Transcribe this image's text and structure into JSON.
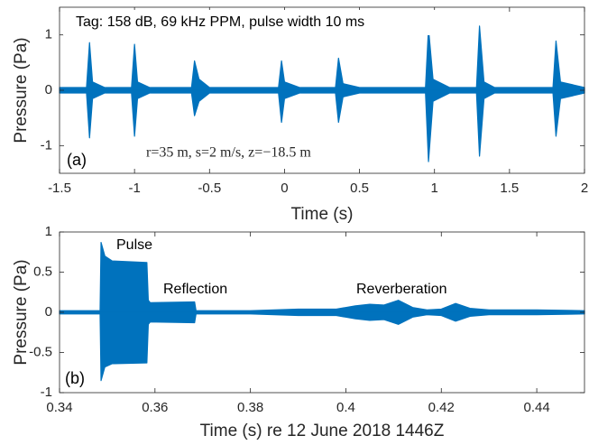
{
  "chart_data": [
    {
      "type": "line",
      "xlabel": "Time (s)",
      "ylabel": "Pressure (Pa)",
      "panel_label": "(a)",
      "annotations": [
        "Tag:  158 dB,  69 kHz PPM,  pulse width 10 ms",
        "r=35 m, s=2 m/s, z=−18.5 m"
      ],
      "xlim": [
        -1.5,
        2
      ],
      "ylim": [
        -1.5,
        1.5
      ],
      "xticks": [
        -1.5,
        -1,
        -0.5,
        0,
        0.5,
        1,
        1.5,
        2
      ],
      "yticks": [
        -1,
        0,
        1
      ],
      "x": [
        -1.5,
        -1.32,
        -1.3,
        -1.28,
        -1.2,
        -1.02,
        -1.0,
        -0.98,
        -0.9,
        -0.62,
        -0.6,
        -0.57,
        -0.5,
        -0.04,
        -0.02,
        0.0,
        0.1,
        0.34,
        0.36,
        0.39,
        0.5,
        0.94,
        0.96,
        0.99,
        1.1,
        1.28,
        1.3,
        1.33,
        1.4,
        1.79,
        1.81,
        1.84,
        2.0
      ],
      "series": [
        {
          "color": "#0072bd",
          "values": [
            0.05,
            0.05,
            0.86,
            0.15,
            0.05,
            0.05,
            0.83,
            0.15,
            0.05,
            0.05,
            0.53,
            0.2,
            0.05,
            0.05,
            0.53,
            0.15,
            0.05,
            0.05,
            0.58,
            0.12,
            0.05,
            0.05,
            1.12,
            0.2,
            0.05,
            0.05,
            1.16,
            0.15,
            0.05,
            0.05,
            0.89,
            0.15,
            0.05
          ]
        },
        {
          "color": "#0072bd",
          "values": [
            -0.05,
            -0.05,
            -0.86,
            -0.15,
            -0.05,
            -0.05,
            -0.83,
            -0.15,
            -0.05,
            -0.05,
            -0.46,
            -0.2,
            -0.05,
            -0.05,
            -0.58,
            -0.15,
            -0.05,
            -0.05,
            -0.58,
            -0.12,
            -0.05,
            -0.05,
            -1.29,
            -0.2,
            -0.05,
            -0.05,
            -1.19,
            -0.15,
            -0.05,
            -0.05,
            -0.83,
            -0.15,
            -0.05
          ]
        }
      ]
    },
    {
      "type": "line",
      "xlabel": "Time (s) re 12 June 2018 1446Z",
      "ylabel": "Pressure (Pa)",
      "panel_label": "(b)",
      "annotations": [
        "Pulse",
        "Reflection",
        "Reverberation"
      ],
      "xlim": [
        0.34,
        0.45
      ],
      "ylim": [
        -1,
        1
      ],
      "xticks": [
        0.34,
        0.36,
        0.38,
        0.4,
        0.42,
        0.44
      ],
      "yticks": [
        -1,
        -0.5,
        0,
        0.5,
        1
      ],
      "x": [
        0.34,
        0.3485,
        0.3487,
        0.3495,
        0.351,
        0.3583,
        0.3586,
        0.359,
        0.3683,
        0.3686,
        0.38,
        0.39,
        0.398,
        0.402,
        0.405,
        0.408,
        0.411,
        0.414,
        0.417,
        0.42,
        0.423,
        0.426,
        0.43,
        0.44,
        0.45
      ],
      "series": [
        {
          "color": "#0072bd",
          "values": [
            0.02,
            0.02,
            0.87,
            0.7,
            0.64,
            0.62,
            0.15,
            0.12,
            0.13,
            0.02,
            0.02,
            0.04,
            0.04,
            0.08,
            0.1,
            0.09,
            0.15,
            0.06,
            0.03,
            0.04,
            0.11,
            0.05,
            0.03,
            0.03,
            0.02
          ]
        },
        {
          "color": "#0072bd",
          "values": [
            -0.02,
            -0.02,
            -0.85,
            -0.68,
            -0.64,
            -0.63,
            -0.15,
            -0.12,
            -0.13,
            -0.02,
            -0.02,
            -0.04,
            -0.04,
            -0.08,
            -0.1,
            -0.09,
            -0.15,
            -0.06,
            -0.03,
            -0.04,
            -0.11,
            -0.05,
            -0.03,
            -0.03,
            -0.02
          ]
        }
      ]
    }
  ]
}
